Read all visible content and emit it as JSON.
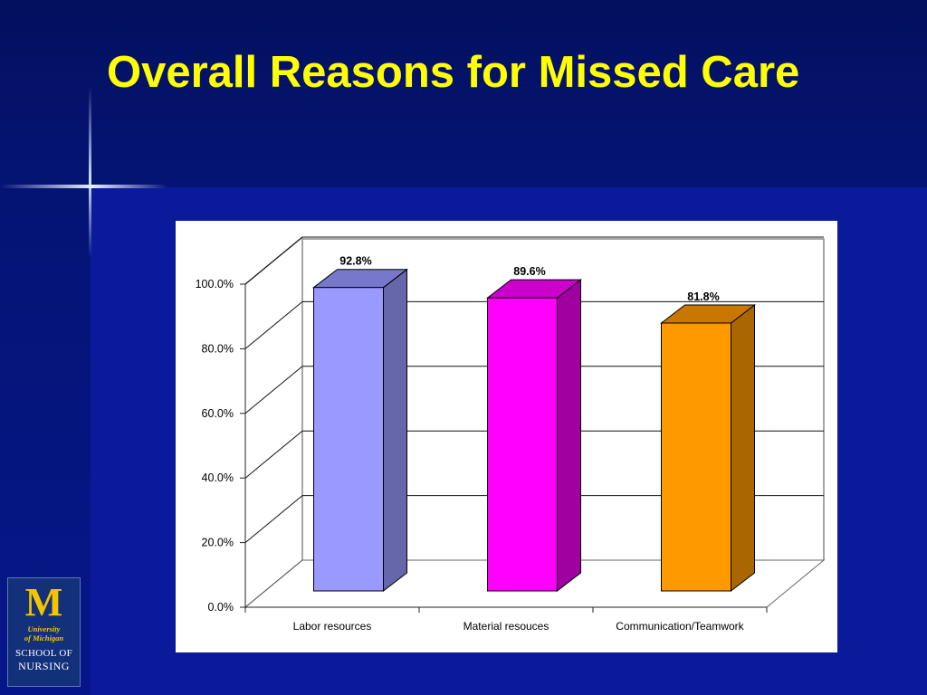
{
  "slide": {
    "title": "Overall Reasons for Missed Care"
  },
  "logo": {
    "mark": "M",
    "line1": "University",
    "line2": "of Michigan",
    "school": "SCHOOL OF",
    "nursing": "NURSING"
  },
  "colors": {
    "title": "#ffff00",
    "background": "#0b1a9a"
  },
  "chart_data": {
    "type": "bar",
    "style": "3d",
    "categories": [
      "Labor resources",
      "Material resouces",
      "Communication/Teamwork"
    ],
    "values": [
      92.8,
      89.6,
      81.8
    ],
    "data_labels": [
      "92.8%",
      "89.6%",
      "81.8%"
    ],
    "y_ticks": [
      "0.0%",
      "20.0%",
      "40.0%",
      "60.0%",
      "80.0%",
      "100.0%"
    ],
    "ylim": [
      0,
      100
    ],
    "grid": true,
    "legend": false,
    "bar_colors": [
      {
        "front": "#9999ff",
        "side": "#6666aa",
        "top": "#7777cc"
      },
      {
        "front": "#ff00ff",
        "side": "#a000a0",
        "top": "#cc00cc"
      },
      {
        "front": "#ff9900",
        "side": "#aa6600",
        "top": "#c87700"
      }
    ]
  }
}
